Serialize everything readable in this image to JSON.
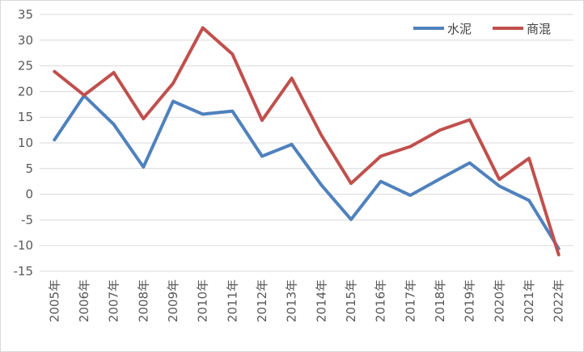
{
  "chart_data": {
    "type": "line",
    "title": "",
    "xlabel": "",
    "ylabel": "",
    "categories": [
      "2005年",
      "2006年",
      "2007年",
      "2008年",
      "2009年",
      "2010年",
      "2011年",
      "2012年",
      "2013年",
      "2014年",
      "2015年",
      "2016年",
      "2017年",
      "2018年",
      "2019年",
      "2020年",
      "2021年",
      "2022年"
    ],
    "ylim": [
      -15,
      35
    ],
    "yticks": [
      35,
      30,
      25,
      20,
      15,
      10,
      5,
      0,
      -5,
      -10,
      -15
    ],
    "grid": true,
    "legend_position": "top-right",
    "series": [
      {
        "name": "水泥",
        "color": "#4f81bd",
        "values": [
          10.6,
          19.2,
          13.6,
          5.3,
          18.1,
          15.6,
          16.2,
          7.4,
          9.7,
          1.8,
          -4.9,
          2.5,
          -0.2,
          3.0,
          6.1,
          1.6,
          -1.2,
          -10.6
        ]
      },
      {
        "name": "商混",
        "color": "#c0504d",
        "values": [
          23.9,
          19.3,
          23.7,
          14.7,
          21.6,
          32.4,
          27.3,
          14.4,
          22.6,
          11.5,
          2.1,
          7.4,
          9.3,
          12.5,
          14.5,
          2.9,
          7.0,
          -11.8
        ]
      }
    ]
  }
}
